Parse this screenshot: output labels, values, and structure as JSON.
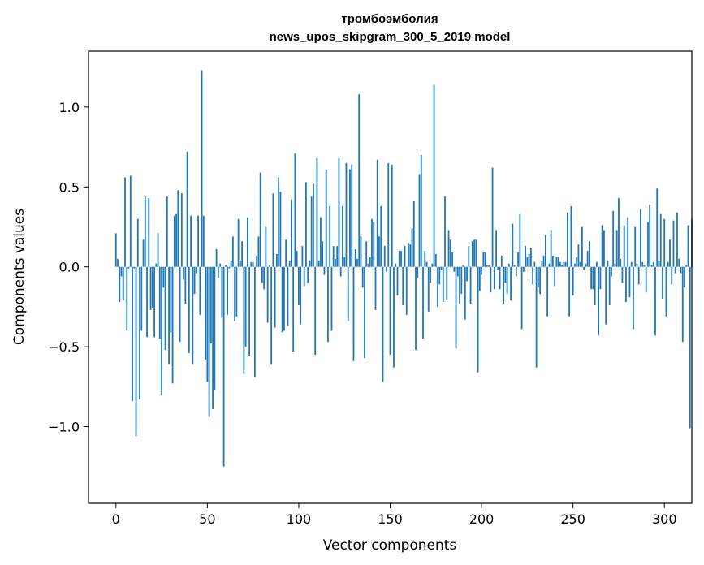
{
  "chart_data": {
    "type": "bar",
    "title_line1": "тромбоэмболия",
    "title_line2": "news_upos_skipgram_300_5_2019 model",
    "xlabel": "Vector components",
    "ylabel": "Components values",
    "xlim": [
      -15,
      315
    ],
    "ylim": [
      -1.48,
      1.35
    ],
    "x_ticks": [
      0,
      50,
      100,
      150,
      200,
      250,
      300
    ],
    "x_tick_labels": [
      "0",
      "50",
      "100",
      "150",
      "200",
      "250",
      "300"
    ],
    "y_ticks": [
      1.0,
      0.5,
      0.0,
      -0.5,
      -1.0
    ],
    "y_tick_labels": [
      "1.0",
      "0.5",
      "0.0",
      "−0.5",
      "−1.0"
    ],
    "bar_color": "#1f77b4",
    "grid": false,
    "values": [
      0.21,
      0.05,
      -0.22,
      -0.06,
      -0.21,
      0.56,
      -0.4,
      -0.01,
      0.57,
      -0.84,
      -0.01,
      -1.06,
      0.3,
      -0.83,
      -0.4,
      0.17,
      0.44,
      -0.44,
      0.43,
      -0.27,
      -0.26,
      -0.44,
      0.02,
      0.21,
      -0.45,
      -0.8,
      -0.13,
      -0.52,
      0.44,
      -0.61,
      -0.41,
      -0.73,
      0.32,
      0.33,
      0.48,
      -0.47,
      0.46,
      -0.08,
      -0.23,
      0.72,
      -0.54,
      0.32,
      -0.61,
      -0.17,
      -0.04,
      0.32,
      -0.3,
      1.23,
      0.32,
      -0.58,
      -0.72,
      -0.94,
      -0.48,
      -0.89,
      -0.77,
      0.11,
      -0.07,
      0.02,
      -0.32,
      -1.25,
      0.01,
      -0.3,
      -0.01,
      0.04,
      0.19,
      -0.34,
      -0.31,
      0.3,
      0.04,
      0.16,
      -0.67,
      -0.5,
      0.31,
      -0.56,
      0.03,
      0.03,
      -0.69,
      0.07,
      0.19,
      0.59,
      -0.1,
      -0.14,
      0.25,
      -0.35,
      0.01,
      -0.61,
      0.46,
      -0.38,
      0.08,
      0.56,
      0.47,
      -0.41,
      -0.4,
      0.17,
      -0.37,
      0.04,
      0.42,
      -0.53,
      0.71,
      0.1,
      -0.24,
      -0.36,
      0.13,
      -0.12,
      0.53,
      -0.1,
      0.04,
      0.44,
      0.52,
      -0.55,
      0.68,
      0.04,
      0.31,
      0.16,
      -0.05,
      0.61,
      -0.47,
      0.38,
      -0.4,
      0.13,
      0.05,
      0.13,
      0.68,
      -0.06,
      0.38,
      0.06,
      0.65,
      -0.34,
      0.61,
      0.64,
      -0.59,
      0.11,
      0.05,
      1.08,
      0.19,
      -0.13,
      -0.57,
      0.16,
      0.02,
      0.06,
      0.3,
      0.28,
      -0.27,
      0.67,
      0.19,
      0.38,
      -0.72,
      0.13,
      -0.03,
      0.65,
      -0.55,
      0.64,
      -0.63,
      0.02,
      -0.18,
      0.1,
      0.1,
      -0.24,
      0.13,
      -0.3,
      0.15,
      0.14,
      0.24,
      0.41,
      -0.52,
      -0.07,
      0.58,
      0.7,
      -0.45,
      0.1,
      0.03,
      -0.28,
      -0.1,
      0.02,
      1.14,
      0.08,
      -0.25,
      -0.11,
      -0.02,
      -0.22,
      0.44,
      -0.21,
      0.23,
      0.17,
      0.09,
      -0.03,
      -0.51,
      -0.06,
      -0.23,
      -0.17,
      0.01,
      -0.33,
      -0.09,
      0.13,
      -0.23,
      0.16,
      0.17,
      0.17,
      -0.66,
      -0.15,
      -0.05,
      0.09,
      0.09,
      0.01,
      0.01,
      -0.16,
      0.62,
      -0.14,
      0.23,
      -0.02,
      -0.14,
      0.07,
      -0.23,
      -0.1,
      -0.17,
      0.02,
      -0.21,
      0.27,
      0.01,
      -0.06,
      0.09,
      0.33,
      -0.39,
      -0.03,
      0.13,
      0.06,
      0.08,
      0.12,
      -0.11,
      0.03,
      -0.63,
      -0.13,
      -0.17,
      0.04,
      0.07,
      0.2,
      -0.31,
      0.02,
      0.23,
      0.07,
      -0.12,
      0.06,
      0.06,
      0.03,
      0.01,
      0.03,
      0.03,
      0.34,
      -0.31,
      0.38,
      -0.18,
      0.02,
      0.06,
      0.14,
      0.03,
      0.25,
      -0.02,
      0.02,
      0.1,
      0.16,
      -0.14,
      -0.14,
      -0.24,
      0.03,
      -0.43,
      -0.14,
      0.26,
      0.23,
      -0.36,
      0.04,
      -0.24,
      -0.06,
      0.35,
      0.02,
      0.23,
      0.43,
      0.05,
      -0.1,
      0.26,
      -0.22,
      0.31,
      -0.19,
      0.03,
      -0.39,
      0.25,
      0.02,
      -0.11,
      0.36,
      0.03,
      0.01,
      -0.16,
      0.28,
      0.39,
      0.01,
      0.03,
      -0.43,
      0.49,
      0.04,
      0.33,
      -0.2,
      0.3,
      -0.31,
      0.03,
      0.17,
      -0.11,
      0.29,
      -0.04,
      0.34,
      0.05,
      -0.04,
      -0.47,
      -0.13,
      0.01,
      0.26,
      -1.01,
      0.3
    ]
  }
}
